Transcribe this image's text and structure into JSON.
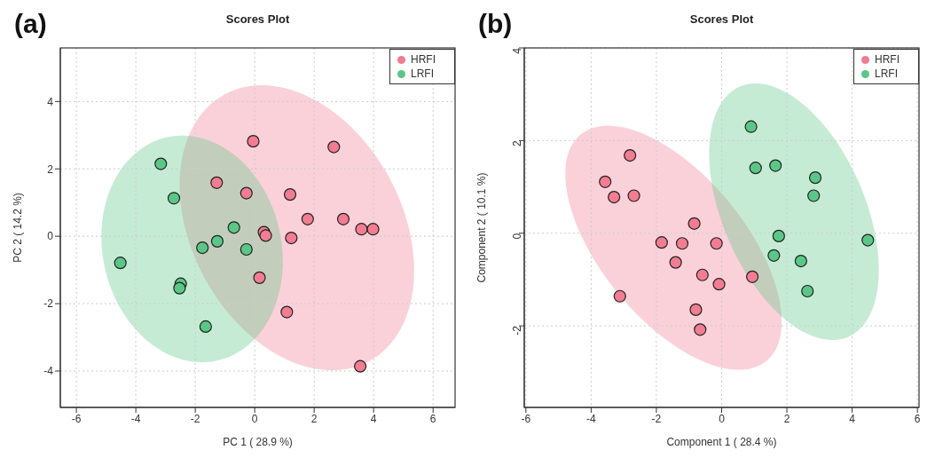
{
  "chart_data": [
    {
      "type": "scatter",
      "title": "Scores Plot",
      "xlabel": "PC 1 ( 28.9 %)",
      "ylabel": "PC 2 ( 14.2 %)",
      "annotations": [
        "(a)"
      ],
      "xlim": [
        -6.54,
        6.74
      ],
      "ylim": [
        -5.08,
        5.59
      ],
      "xticks": [
        -6,
        -4,
        -2,
        0,
        2,
        4,
        6
      ],
      "yticks": [
        -4,
        -2,
        0,
        2,
        4
      ],
      "grid": true,
      "legend": "top right",
      "marker": "circle",
      "series": [
        {
          "name": "HRFI",
          "color": "#f27c91",
          "x": [
            -0.05,
            2.66,
            -1.28,
            -0.28,
            1.19,
            1.78,
            2.98,
            3.59,
            3.98,
            0.31,
            0.37,
            1.23,
            0.16,
            1.08,
            3.55
          ],
          "values": [
            2.82,
            2.65,
            1.59,
            1.28,
            1.24,
            0.51,
            0.51,
            0.21,
            0.21,
            0.12,
            0.02,
            -0.05,
            -1.23,
            -2.25,
            -3.86
          ]
        },
        {
          "name": "LRFI",
          "color": "#5bc787",
          "x": [
            -3.16,
            -2.72,
            -0.7,
            -1.26,
            -1.76,
            -0.28,
            -4.52,
            -2.49,
            -2.53,
            -1.65
          ],
          "values": [
            2.15,
            1.13,
            0.26,
            -0.15,
            -0.34,
            -0.39,
            -0.79,
            -1.41,
            -1.54,
            -2.68
          ]
        }
      ]
    },
    {
      "type": "scatter",
      "title": "Scores Plot",
      "xlabel": "Component 1 ( 28.4 %)",
      "ylabel": "Component 2 ( 10.1 %)",
      "annotations": [
        "(b)"
      ],
      "xlim": [
        -6.05,
        6.05
      ],
      "ylim": [
        -3.76,
        4
      ],
      "xticks": [
        -6,
        -4,
        -2,
        0,
        2,
        4,
        6
      ],
      "yticks": [
        -2,
        0,
        2,
        4
      ],
      "grid": true,
      "legend": "top right",
      "marker": "circle",
      "series": [
        {
          "name": "HRFI",
          "color": "#f27c91",
          "x": [
            -2.81,
            -3.57,
            -3.3,
            -2.69,
            -0.84,
            -1.84,
            -1.21,
            -0.16,
            -1.41,
            -0.59,
            -0.08,
            0.94,
            -3.12,
            -0.79,
            -0.66
          ],
          "values": [
            1.68,
            1.11,
            0.78,
            0.81,
            0.21,
            -0.2,
            -0.22,
            -0.22,
            -0.63,
            -0.9,
            -1.1,
            -0.94,
            -1.36,
            -1.65,
            -2.08
          ]
        },
        {
          "name": "LRFI",
          "color": "#5bc787",
          "x": [
            0.9,
            1.04,
            1.65,
            2.87,
            2.82,
            1.75,
            4.48,
            1.6,
            2.43,
            2.63
          ],
          "values": [
            2.3,
            1.41,
            1.46,
            1.2,
            0.81,
            -0.06,
            -0.15,
            -0.48,
            -0.6,
            -1.25
          ]
        }
      ]
    }
  ]
}
